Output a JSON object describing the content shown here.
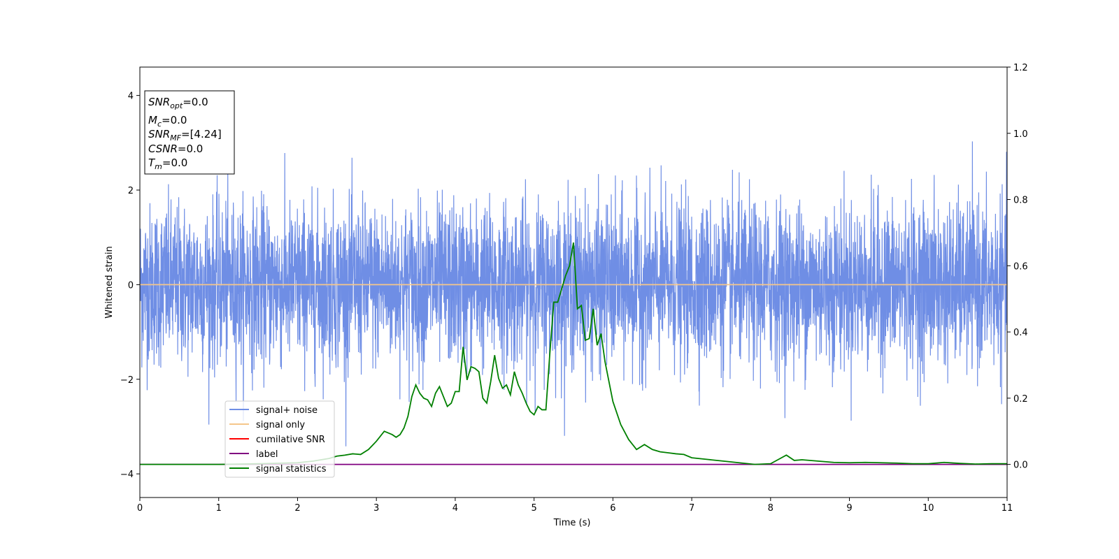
{
  "chart_data": {
    "type": "line",
    "xlabel": "Time (s)",
    "ylabel": "Whitened strain",
    "xlim": [
      0,
      11
    ],
    "ylim": [
      -4.5,
      4.6
    ],
    "y2lim": [
      -0.1,
      1.2
    ],
    "xticks": [
      0,
      1,
      2,
      3,
      4,
      5,
      6,
      7,
      8,
      9,
      10,
      11
    ],
    "yticks": [
      -4,
      -2,
      0,
      2,
      4
    ],
    "y2ticks": [
      0.0,
      0.2,
      0.4,
      0.6,
      0.8,
      1.0,
      1.2
    ],
    "y2tick_labels": [
      "0.0",
      "0.2",
      "0.4",
      "0.6",
      "0.8",
      "1.0",
      "1.2"
    ],
    "grid": false,
    "legend_position": "lower-left",
    "info_box": {
      "lines": [
        {
          "main": "SNR",
          "sub": "opt",
          "value": "=0.0"
        },
        {
          "main": "M",
          "sub": "c",
          "value": "=0.0"
        },
        {
          "main": "SNR",
          "sub": "MF",
          "value": "=[4.24]"
        },
        {
          "main": "CSNR",
          "sub": "",
          "value": "=0.0"
        },
        {
          "main": "T",
          "sub": "m",
          "value": "=0.0"
        }
      ]
    },
    "series": [
      {
        "name": "signal+ noise",
        "color": "#6f8ee5",
        "axis": "left",
        "kind": "noise",
        "std": 0.85,
        "t_range": [
          0,
          11
        ]
      },
      {
        "name": "signal only",
        "color": "#f5c68a",
        "axis": "left",
        "x": [
          0,
          11
        ],
        "y": [
          0,
          0
        ]
      },
      {
        "name": "cumilative SNR",
        "color": "#ff0000",
        "axis": "right",
        "x": [],
        "y": []
      },
      {
        "name": "label",
        "color": "#800080",
        "axis": "right",
        "x": [
          0,
          11
        ],
        "y": [
          0,
          0
        ]
      },
      {
        "name": "signal statistics",
        "color": "#008000",
        "axis": "right",
        "x": [
          0,
          0.5,
          1.0,
          1.5,
          2.0,
          2.2,
          2.4,
          2.5,
          2.6,
          2.7,
          2.8,
          2.9,
          3.0,
          3.05,
          3.1,
          3.15,
          3.2,
          3.25,
          3.3,
          3.35,
          3.4,
          3.45,
          3.5,
          3.55,
          3.6,
          3.65,
          3.7,
          3.75,
          3.8,
          3.85,
          3.9,
          3.95,
          4.0,
          4.05,
          4.1,
          4.15,
          4.2,
          4.25,
          4.3,
          4.35,
          4.4,
          4.45,
          4.5,
          4.55,
          4.6,
          4.65,
          4.7,
          4.75,
          4.8,
          4.85,
          4.9,
          4.95,
          5.0,
          5.05,
          5.1,
          5.15,
          5.2,
          5.25,
          5.3,
          5.35,
          5.4,
          5.45,
          5.5,
          5.55,
          5.6,
          5.65,
          5.7,
          5.75,
          5.8,
          5.85,
          5.9,
          5.95,
          6.0,
          6.1,
          6.2,
          6.3,
          6.4,
          6.5,
          6.6,
          6.7,
          6.8,
          6.9,
          7.0,
          7.2,
          7.4,
          7.6,
          7.8,
          8.0,
          8.1,
          8.2,
          8.3,
          8.4,
          8.6,
          8.8,
          9.0,
          9.2,
          9.4,
          9.6,
          9.8,
          10.0,
          10.2,
          10.4,
          10.6,
          10.8,
          11.0
        ],
        "y": [
          0.0,
          0.0,
          0.0,
          0.002,
          0.005,
          0.01,
          0.018,
          0.025,
          0.028,
          0.032,
          0.03,
          0.045,
          0.07,
          0.085,
          0.1,
          0.095,
          0.09,
          0.082,
          0.09,
          0.11,
          0.145,
          0.205,
          0.24,
          0.215,
          0.2,
          0.195,
          0.175,
          0.215,
          0.235,
          0.205,
          0.175,
          0.185,
          0.22,
          0.22,
          0.355,
          0.255,
          0.295,
          0.29,
          0.28,
          0.2,
          0.185,
          0.25,
          0.33,
          0.26,
          0.23,
          0.24,
          0.21,
          0.28,
          0.24,
          0.215,
          0.185,
          0.16,
          0.15,
          0.175,
          0.165,
          0.165,
          0.335,
          0.49,
          0.49,
          0.53,
          0.57,
          0.6,
          0.67,
          0.47,
          0.48,
          0.375,
          0.38,
          0.47,
          0.36,
          0.395,
          0.31,
          0.25,
          0.19,
          0.12,
          0.075,
          0.045,
          0.06,
          0.045,
          0.038,
          0.035,
          0.032,
          0.03,
          0.02,
          0.015,
          0.01,
          0.005,
          0.0,
          0.002,
          0.015,
          0.028,
          0.012,
          0.014,
          0.01,
          0.006,
          0.005,
          0.006,
          0.005,
          0.004,
          0.002,
          0.002,
          0.006,
          0.003,
          0.001,
          0.002,
          0.002
        ]
      }
    ]
  }
}
